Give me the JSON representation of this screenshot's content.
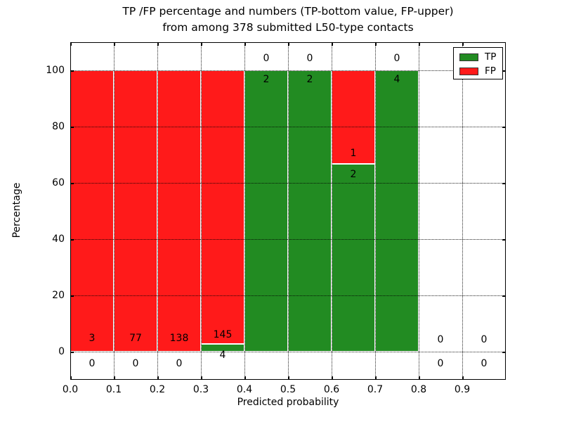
{
  "title": {
    "line1": "TP /FP percentage and numbers (TP-bottom value, FP-upper)",
    "line2": "from among 378 submitted L50-type contacts"
  },
  "axes": {
    "xlabel": "Predicted probability",
    "ylabel": "Percentage"
  },
  "legend": {
    "items": [
      {
        "label": "TP",
        "color": "#228b22"
      },
      {
        "label": "FP",
        "color": "#ff1a1a"
      }
    ],
    "position": "upper right"
  },
  "chart_data": {
    "type": "bar",
    "stacked": true,
    "title": "TP /FP percentage and numbers (TP-bottom value, FP-upper) from among 378 submitted L50-type contacts",
    "xlabel": "Predicted probability",
    "ylabel": "Percentage",
    "xlim": [
      0.0,
      1.0
    ],
    "ylim": [
      -10,
      110
    ],
    "grid": "dotted",
    "legend_position": "upper right",
    "total_submitted": 378,
    "bin_width": 0.1,
    "series": [
      {
        "name": "TP",
        "color": "#228b22"
      },
      {
        "name": "FP",
        "color": "#ff1a1a"
      }
    ],
    "x_ticks": [
      {
        "label": "0.0",
        "value": 0.0
      },
      {
        "label": "0.1",
        "value": 0.1
      },
      {
        "label": "0.2",
        "value": 0.2
      },
      {
        "label": "0.3",
        "value": 0.3
      },
      {
        "label": "0.4",
        "value": 0.4
      },
      {
        "label": "0.5",
        "value": 0.5
      },
      {
        "label": "0.6",
        "value": 0.6
      },
      {
        "label": "0.7",
        "value": 0.7
      },
      {
        "label": "0.8",
        "value": 0.8
      },
      {
        "label": "0.9",
        "value": 0.9
      }
    ],
    "y_ticks": [
      {
        "label": "0",
        "value": 0
      },
      {
        "label": "20",
        "value": 20
      },
      {
        "label": "40",
        "value": 40
      },
      {
        "label": "60",
        "value": 60
      },
      {
        "label": "80",
        "value": 80
      },
      {
        "label": "100",
        "value": 100
      }
    ],
    "bars": [
      {
        "bin": "0.0-0.1",
        "tp": 0,
        "fp": 3,
        "tp_pct": 0,
        "fp_pct": 100,
        "fp_label_y": 4.8,
        "tp_label_y": -4.3
      },
      {
        "bin": "0.1-0.2",
        "tp": 0,
        "fp": 77,
        "tp_pct": 0,
        "fp_pct": 100,
        "fp_label_y": 4.8,
        "tp_label_y": -4.3
      },
      {
        "bin": "0.2-0.3",
        "tp": 0,
        "fp": 138,
        "tp_pct": 0,
        "fp_pct": 100,
        "fp_label_y": 4.8,
        "tp_label_y": -4.3
      },
      {
        "bin": "0.3-0.4",
        "tp": 4,
        "fp": 145,
        "tp_pct": 2.68,
        "fp_pct": 97.32,
        "fp_label_y": 5.9,
        "tp_label_y": -1.3
      },
      {
        "bin": "0.4-0.5",
        "tp": 2,
        "fp": 0,
        "tp_pct": 100,
        "fp_pct": 0,
        "fp_label_y": 104.3,
        "tp_label_y": 96.8
      },
      {
        "bin": "0.5-0.6",
        "tp": 2,
        "fp": 0,
        "tp_pct": 100,
        "fp_pct": 0,
        "fp_label_y": 104.3,
        "tp_label_y": 96.8
      },
      {
        "bin": "0.6-0.7",
        "tp": 2,
        "fp": 1,
        "tp_pct": 66.67,
        "fp_pct": 33.33,
        "fp_label_y": 70.5,
        "tp_label_y": 63.0
      },
      {
        "bin": "0.7-0.8",
        "tp": 4,
        "fp": 0,
        "tp_pct": 100,
        "fp_pct": 0,
        "fp_label_y": 104.3,
        "tp_label_y": 96.8
      },
      {
        "bin": "0.8-0.9",
        "tp": 0,
        "fp": 0,
        "tp_pct": 0,
        "fp_pct": 0,
        "fp_label_y": 4.3,
        "tp_label_y": -4.3
      },
      {
        "bin": "0.9-1.0",
        "tp": 0,
        "fp": 0,
        "tp_pct": 0,
        "fp_pct": 0,
        "fp_label_y": 4.3,
        "tp_label_y": -4.3
      }
    ]
  }
}
